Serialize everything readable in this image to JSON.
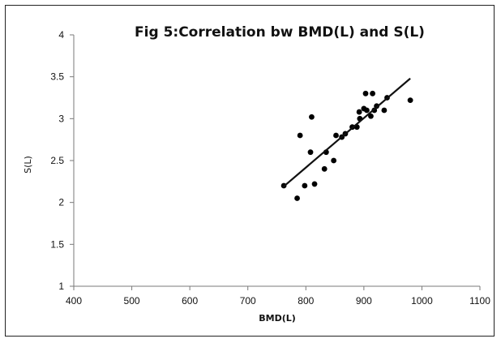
{
  "chart_data": {
    "type": "scatter",
    "title": "Fig 5:Correlation bw BMD(L) and S(L)",
    "xlabel": "BMD(L)",
    "ylabel": "S(L)",
    "xlim": [
      400,
      1100
    ],
    "ylim": [
      1,
      4
    ],
    "xticks": [
      400,
      500,
      600,
      700,
      800,
      900,
      1000,
      1100
    ],
    "yticks": [
      1,
      1.5,
      2,
      2.5,
      3,
      3.5,
      4
    ],
    "ytick_labels": [
      "1",
      "1.5",
      "2",
      "2.5",
      "3",
      "3.5",
      "4"
    ],
    "grid": false,
    "legend": "none",
    "series": [
      {
        "points": [
          [
            762,
            2.2
          ],
          [
            785,
            2.05
          ],
          [
            790,
            2.8
          ],
          [
            798,
            2.2
          ],
          [
            808,
            2.6
          ],
          [
            810,
            3.02
          ],
          [
            815,
            2.22
          ],
          [
            832,
            2.4
          ],
          [
            835,
            2.6
          ],
          [
            848,
            2.5
          ],
          [
            852,
            2.8
          ],
          [
            862,
            2.78
          ],
          [
            868,
            2.82
          ],
          [
            880,
            2.9
          ],
          [
            888,
            2.9
          ],
          [
            892,
            3.08
          ],
          [
            893,
            3.0
          ],
          [
            900,
            3.12
          ],
          [
            903,
            3.3
          ],
          [
            905,
            3.1
          ],
          [
            912,
            3.03
          ],
          [
            915,
            3.3
          ],
          [
            918,
            3.1
          ],
          [
            922,
            3.15
          ],
          [
            935,
            3.1
          ],
          [
            940,
            3.25
          ],
          [
            980,
            3.22
          ]
        ]
      }
    ],
    "trendline": {
      "type": "linear",
      "x": [
        760,
        980
      ],
      "y": [
        2.18,
        3.48
      ]
    }
  }
}
